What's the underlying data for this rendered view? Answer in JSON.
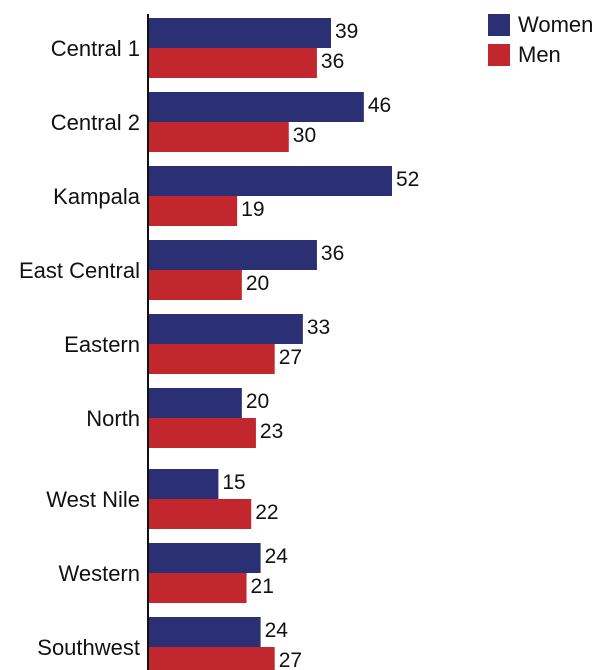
{
  "chart_data": {
    "type": "bar",
    "orientation": "horizontal",
    "categories": [
      "Central 1",
      "Central 2",
      "Kampala",
      "East Central",
      "Eastern",
      "North",
      "West Nile",
      "Western",
      "Southwest"
    ],
    "series": [
      {
        "name": "Women",
        "color": "#2b2f73",
        "values": [
          39,
          46,
          52,
          36,
          33,
          20,
          15,
          24,
          24
        ]
      },
      {
        "name": "Men",
        "color": "#c1272d",
        "values": [
          36,
          30,
          19,
          20,
          27,
          23,
          22,
          21,
          27
        ]
      }
    ],
    "xlim": [
      0,
      52
    ],
    "grid": false,
    "legend_position": "top-right"
  }
}
